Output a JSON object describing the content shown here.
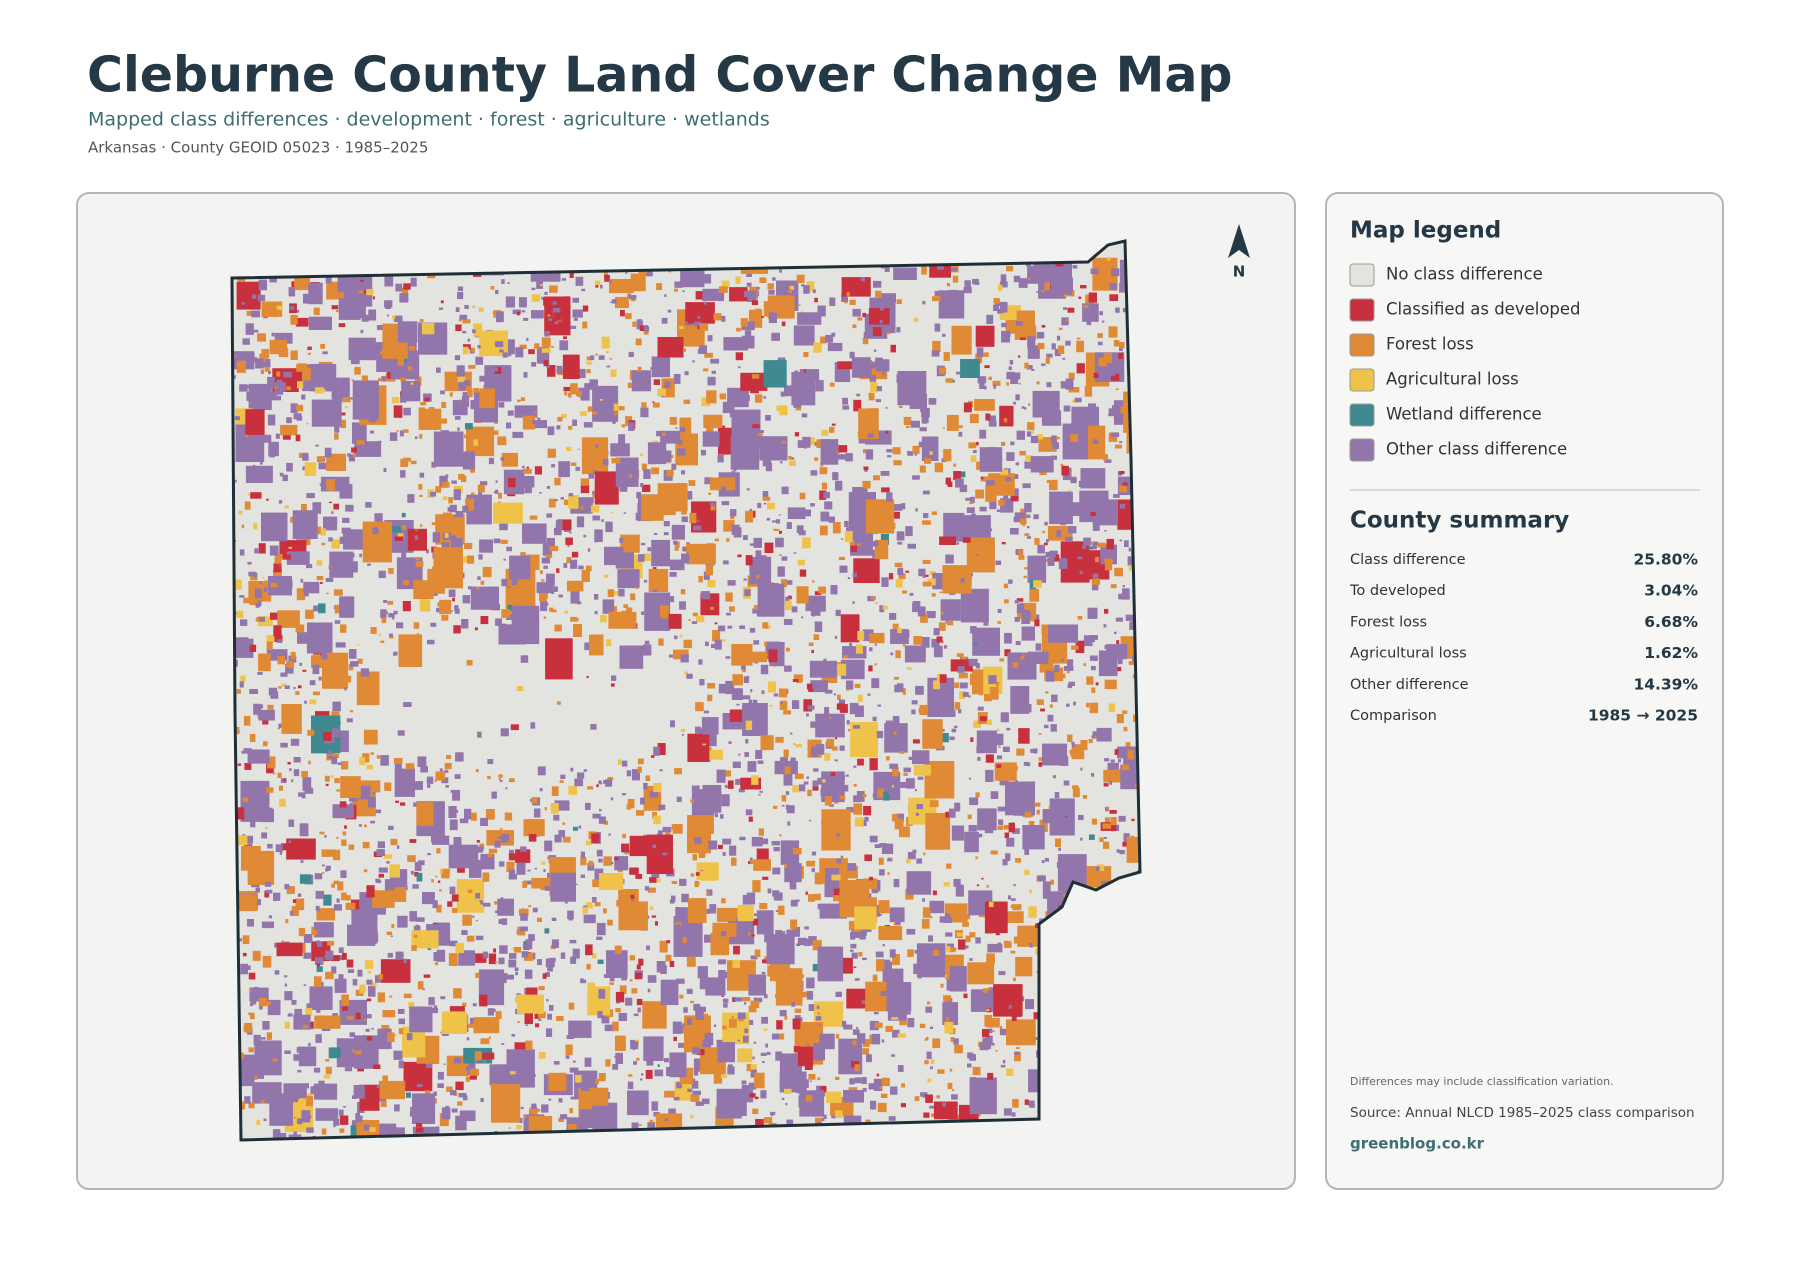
{
  "header": {
    "title": "Cleburne County Land Cover Change Map",
    "subtitle": "Mapped class differences · development · forest · agriculture · wetlands",
    "meta": "Arkansas · County GEOID 05023 · 1985–2025"
  },
  "map": {
    "north_label": "N"
  },
  "legend": {
    "title": "Map legend",
    "items": [
      {
        "label": "No class difference",
        "color": "#e3e3e0"
      },
      {
        "label": "Classified as developed",
        "color": "#c9303e"
      },
      {
        "label": "Forest loss",
        "color": "#e08a35"
      },
      {
        "label": "Agricultural loss",
        "color": "#efc34a"
      },
      {
        "label": "Wetland difference",
        "color": "#3f8a90"
      },
      {
        "label": "Other class difference",
        "color": "#9275ab"
      }
    ]
  },
  "summary": {
    "title": "County summary",
    "rows": [
      {
        "label": "Class difference",
        "value": "25.80%"
      },
      {
        "label": "To developed",
        "value": "3.04%"
      },
      {
        "label": "Forest loss",
        "value": "6.68%"
      },
      {
        "label": "Agricultural loss",
        "value": "1.62%"
      },
      {
        "label": "Other difference",
        "value": "14.39%"
      },
      {
        "label": "Comparison",
        "value": "1985 → 2025"
      }
    ]
  },
  "footer": {
    "note": "Differences may include classification variation.",
    "source": "Source: Annual NLCD 1985–2025 class comparison",
    "link": "greenblog.co.kr"
  }
}
